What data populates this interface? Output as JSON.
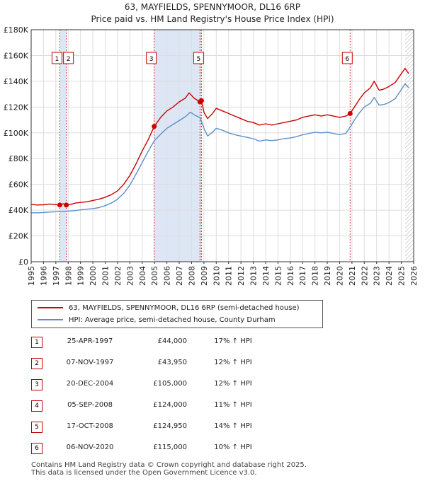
{
  "chart_data": {
    "type": "line",
    "title": "63, MAYFIELDS, SPENNYMOOR, DL16 6RP",
    "subtitle": "Price paid vs. HM Land Registry's House Price Index (HPI)",
    "xlabel": "",
    "ylabel": "",
    "xlim": [
      1995,
      2026
    ],
    "ylim": [
      0,
      180000
    ],
    "y_ticks": [
      0,
      20000,
      40000,
      60000,
      80000,
      100000,
      120000,
      140000,
      160000,
      180000
    ],
    "y_tick_labels": [
      "£0",
      "£20K",
      "£40K",
      "£60K",
      "£80K",
      "£100K",
      "£120K",
      "£140K",
      "£160K",
      "£180K"
    ],
    "x_ticks": [
      1995,
      1996,
      1997,
      1998,
      1999,
      2000,
      2001,
      2002,
      2003,
      2004,
      2005,
      2006,
      2007,
      2008,
      2009,
      2010,
      2011,
      2012,
      2013,
      2014,
      2015,
      2016,
      2017,
      2018,
      2019,
      2020,
      2021,
      2022,
      2023,
      2024,
      2025,
      2026
    ],
    "grid": true,
    "series": [
      {
        "name": "63, MAYFIELDS, SPENNYMOOR, DL16 6RP (semi-detached house)",
        "color": "#cc0000",
        "points": [
          [
            1995.0,
            44500
          ],
          [
            1995.5,
            44000
          ],
          [
            1996.0,
            44200
          ],
          [
            1996.5,
            44800
          ],
          [
            1997.0,
            44300
          ],
          [
            1997.32,
            44000
          ],
          [
            1997.6,
            45000
          ],
          [
            1997.85,
            43950
          ],
          [
            1998.2,
            44500
          ],
          [
            1998.6,
            45500
          ],
          [
            1999.0,
            46000
          ],
          [
            1999.5,
            46500
          ],
          [
            2000.0,
            47500
          ],
          [
            2000.5,
            48500
          ],
          [
            2001.0,
            50000
          ],
          [
            2001.5,
            52000
          ],
          [
            2002.0,
            55000
          ],
          [
            2002.5,
            60000
          ],
          [
            2003.0,
            67000
          ],
          [
            2003.5,
            76000
          ],
          [
            2004.0,
            86000
          ],
          [
            2004.5,
            95000
          ],
          [
            2004.97,
            105000
          ],
          [
            2005.5,
            112000
          ],
          [
            2006.0,
            117000
          ],
          [
            2006.5,
            120000
          ],
          [
            2007.0,
            124000
          ],
          [
            2007.5,
            127000
          ],
          [
            2007.8,
            131000
          ],
          [
            2008.2,
            127000
          ],
          [
            2008.68,
            124000
          ],
          [
            2008.8,
            124950
          ],
          [
            2009.0,
            116000
          ],
          [
            2009.3,
            111000
          ],
          [
            2009.7,
            115000
          ],
          [
            2010.0,
            119000
          ],
          [
            2010.5,
            117000
          ],
          [
            2011.0,
            115000
          ],
          [
            2011.5,
            113000
          ],
          [
            2012.0,
            111000
          ],
          [
            2012.5,
            109000
          ],
          [
            2013.0,
            108000
          ],
          [
            2013.5,
            106000
          ],
          [
            2014.0,
            107000
          ],
          [
            2014.5,
            106000
          ],
          [
            2015.0,
            107000
          ],
          [
            2015.5,
            108000
          ],
          [
            2016.0,
            109000
          ],
          [
            2016.5,
            110000
          ],
          [
            2017.0,
            112000
          ],
          [
            2017.5,
            113000
          ],
          [
            2018.0,
            114000
          ],
          [
            2018.5,
            113000
          ],
          [
            2019.0,
            114000
          ],
          [
            2019.5,
            113000
          ],
          [
            2020.0,
            112000
          ],
          [
            2020.5,
            113000
          ],
          [
            2020.85,
            115000
          ],
          [
            2021.2,
            120000
          ],
          [
            2021.6,
            126000
          ],
          [
            2022.0,
            131000
          ],
          [
            2022.5,
            135000
          ],
          [
            2022.8,
            140000
          ],
          [
            2023.2,
            133000
          ],
          [
            2023.6,
            134000
          ],
          [
            2024.0,
            136000
          ],
          [
            2024.5,
            139000
          ],
          [
            2025.0,
            146000
          ],
          [
            2025.3,
            150000
          ],
          [
            2025.6,
            146000
          ]
        ]
      },
      {
        "name": "HPI: Average price, semi-detached house, County Durham",
        "color": "#5b8fc9",
        "points": [
          [
            1995.0,
            38000
          ],
          [
            1995.5,
            38000
          ],
          [
            1996.0,
            38200
          ],
          [
            1996.5,
            38500
          ],
          [
            1997.0,
            38800
          ],
          [
            1997.5,
            39000
          ],
          [
            1998.0,
            39300
          ],
          [
            1998.5,
            39600
          ],
          [
            1999.0,
            40200
          ],
          [
            1999.5,
            40700
          ],
          [
            2000.0,
            41200
          ],
          [
            2000.5,
            42000
          ],
          [
            2001.0,
            43500
          ],
          [
            2001.5,
            45500
          ],
          [
            2002.0,
            48500
          ],
          [
            2002.5,
            53000
          ],
          [
            2003.0,
            59500
          ],
          [
            2003.5,
            68000
          ],
          [
            2004.0,
            77000
          ],
          [
            2004.5,
            86000
          ],
          [
            2004.97,
            93750
          ],
          [
            2005.5,
            99000
          ],
          [
            2006.0,
            103500
          ],
          [
            2006.5,
            106500
          ],
          [
            2007.0,
            109500
          ],
          [
            2007.5,
            112500
          ],
          [
            2007.9,
            116000
          ],
          [
            2008.3,
            113500
          ],
          [
            2008.7,
            111700
          ],
          [
            2009.0,
            103500
          ],
          [
            2009.3,
            97500
          ],
          [
            2009.7,
            100500
          ],
          [
            2010.0,
            103500
          ],
          [
            2010.5,
            102000
          ],
          [
            2011.0,
            100000
          ],
          [
            2011.5,
            98500
          ],
          [
            2012.0,
            97500
          ],
          [
            2012.5,
            96500
          ],
          [
            2013.0,
            95500
          ],
          [
            2013.5,
            93500
          ],
          [
            2014.0,
            94500
          ],
          [
            2014.5,
            94000
          ],
          [
            2015.0,
            94500
          ],
          [
            2015.5,
            95500
          ],
          [
            2016.0,
            96000
          ],
          [
            2016.5,
            97000
          ],
          [
            2017.0,
            98500
          ],
          [
            2017.5,
            99500
          ],
          [
            2018.0,
            100500
          ],
          [
            2018.5,
            100000
          ],
          [
            2019.0,
            100500
          ],
          [
            2019.5,
            99500
          ],
          [
            2020.0,
            98500
          ],
          [
            2020.5,
            99500
          ],
          [
            2020.85,
            104500
          ],
          [
            2021.2,
            110000
          ],
          [
            2021.6,
            115500
          ],
          [
            2022.0,
            120000
          ],
          [
            2022.5,
            123000
          ],
          [
            2022.8,
            127500
          ],
          [
            2023.2,
            121500
          ],
          [
            2023.6,
            122000
          ],
          [
            2024.0,
            123500
          ],
          [
            2024.5,
            126500
          ],
          [
            2025.0,
            133500
          ],
          [
            2025.3,
            138000
          ],
          [
            2025.6,
            135000
          ]
        ]
      }
    ],
    "transactions": [
      {
        "id": "1",
        "date": "25-APR-1997",
        "year": 1997.32,
        "price": 44000,
        "price_label": "£44,000",
        "hpi": "17% ↑ HPI"
      },
      {
        "id": "2",
        "date": "07-NOV-1997",
        "year": 1997.85,
        "price": 43950,
        "price_label": "£43,950",
        "hpi": "12% ↑ HPI"
      },
      {
        "id": "3",
        "date": "20-DEC-2004",
        "year": 2004.97,
        "price": 105000,
        "price_label": "£105,000",
        "hpi": "12% ↑ HPI"
      },
      {
        "id": "4",
        "date": "05-SEP-2008",
        "year": 2008.68,
        "price": 124000,
        "price_label": "£124,000",
        "hpi": "11% ↑ HPI"
      },
      {
        "id": "5",
        "date": "17-OCT-2008",
        "year": 2008.8,
        "price": 124950,
        "price_label": "£124,950",
        "hpi": "14% ↑ HPI"
      },
      {
        "id": "6",
        "date": "06-NOV-2020",
        "year": 2020.85,
        "price": 115000,
        "price_label": "£115,000",
        "hpi": "10% ↑ HPI"
      }
    ],
    "chart_labels": [
      "1",
      "2",
      "3",
      "5",
      "6"
    ],
    "shaded_ranges": [
      [
        1997.32,
        1997.85
      ],
      [
        2004.97,
        2008.8
      ]
    ],
    "hatched_after": 2025.3
  },
  "colors": {
    "price_line": "#cc0000",
    "hpi_line": "#5b8fc9",
    "shade": "#dde6f5",
    "grid": "#dddddd"
  },
  "legend": {
    "price_label": "63, MAYFIELDS, SPENNYMOOR, DL16 6RP (semi-detached house)",
    "hpi_label": "HPI: Average price, semi-detached house, County Durham"
  },
  "footer": {
    "line1": "Contains HM Land Registry data © Crown copyright and database right 2025.",
    "line2": "This data is licensed under the Open Government Licence v3.0."
  }
}
